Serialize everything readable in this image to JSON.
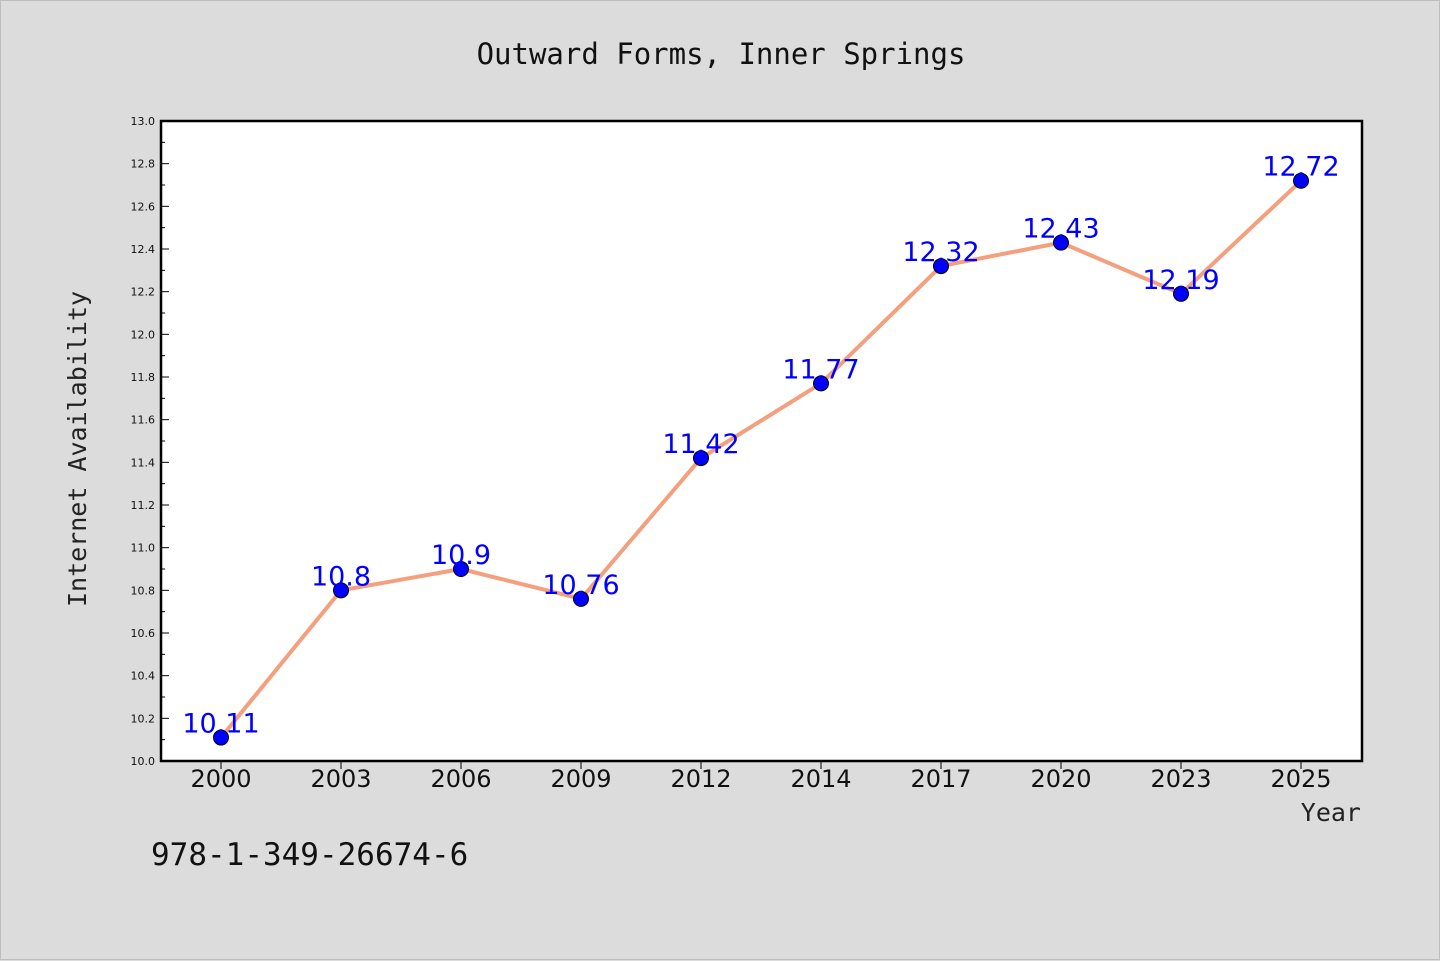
{
  "chart_data": {
    "type": "line",
    "title": "Outward Forms, Inner Springs",
    "xlabel": "Year",
    "ylabel": "Internet Availability",
    "categories": [
      "2000",
      "2003",
      "2006",
      "2009",
      "2012",
      "2014",
      "2017",
      "2020",
      "2023",
      "2025"
    ],
    "series": [
      {
        "values": [
          10.11,
          10.8,
          10.9,
          10.76,
          11.42,
          11.77,
          12.32,
          12.43,
          12.19,
          12.72
        ],
        "labels": [
          "10.11",
          "10.8",
          "10.9",
          "10.76",
          "11.42",
          "11.77",
          "12.32",
          "12.43",
          "12.19",
          "12.72"
        ]
      }
    ],
    "ylim": [
      10.0,
      13.0
    ],
    "yticks": [
      "10.0",
      "10.2",
      "10.4",
      "10.6",
      "10.8",
      "11.0",
      "11.2",
      "11.4",
      "11.6",
      "11.8",
      "12.0",
      "12.2",
      "12.4",
      "12.6",
      "12.8",
      "13.0"
    ],
    "grid": false,
    "legend": false,
    "colors": {
      "line": "#f4a07e",
      "marker": "#0000ff",
      "data_label": "#0000ff",
      "background": "#dcdcdc",
      "plot_background": "#ffffff"
    }
  },
  "annotation": {
    "isbn": "978-1-349-26674-6"
  }
}
